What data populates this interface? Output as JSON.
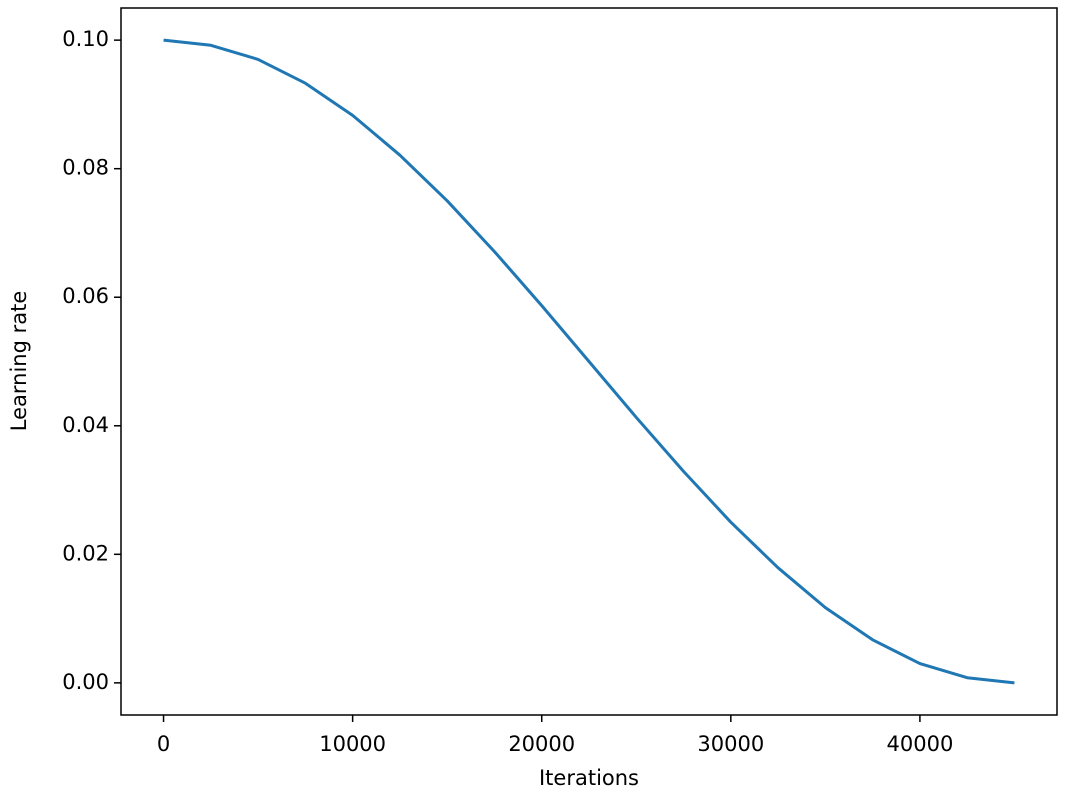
{
  "chart_data": {
    "type": "line",
    "xlabel": "Iterations",
    "ylabel": "Learning rate",
    "x": [
      0,
      2500,
      5000,
      7500,
      10000,
      12500,
      15000,
      17500,
      20000,
      22500,
      25000,
      27500,
      30000,
      32500,
      35000,
      37500,
      40000,
      42500,
      45000
    ],
    "series": [
      {
        "name": "Learning rate",
        "color": "#1f77b4",
        "values": [
          0.1,
          0.0992,
          0.097,
          0.0933,
          0.0883,
          0.0821,
          0.075,
          0.0671,
          0.0587,
          0.05,
          0.0413,
          0.0329,
          0.025,
          0.0179,
          0.0117,
          0.0067,
          0.003,
          0.0008,
          0.0
        ]
      }
    ],
    "xlim": [
      -2250,
      47250
    ],
    "xticks": [
      0,
      10000,
      20000,
      30000,
      40000
    ],
    "ylim": [
      -0.005,
      0.105
    ],
    "yticks": [
      {
        "value": 0.0,
        "label": "0.00"
      },
      {
        "value": 0.02,
        "label": "0.02"
      },
      {
        "value": 0.04,
        "label": "0.04"
      },
      {
        "value": 0.06,
        "label": "0.06"
      },
      {
        "value": 0.08,
        "label": "0.08"
      },
      {
        "value": 0.1,
        "label": "0.10"
      }
    ],
    "grid": false
  }
}
